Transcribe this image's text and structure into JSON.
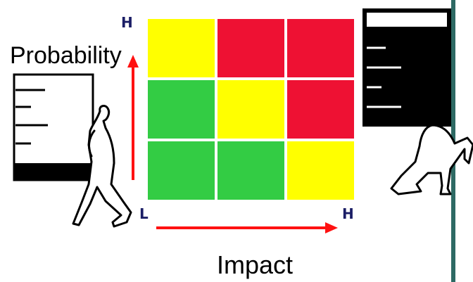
{
  "labels": {
    "y_axis": "Probability",
    "x_axis": "Impact",
    "y_high": "H",
    "origin": "L",
    "x_high": "H"
  },
  "matrix": {
    "levels": [
      "yellow",
      "red",
      "red",
      "green",
      "yellow",
      "red",
      "green",
      "green",
      "yellow"
    ],
    "colors": {
      "green": "#33cc44",
      "yellow": "#ffff00",
      "red": "#ee1133"
    }
  },
  "colors": {
    "arrow": "#ff1111",
    "accent_bar": "#2e6a64",
    "letters": "#1b1e66"
  }
}
